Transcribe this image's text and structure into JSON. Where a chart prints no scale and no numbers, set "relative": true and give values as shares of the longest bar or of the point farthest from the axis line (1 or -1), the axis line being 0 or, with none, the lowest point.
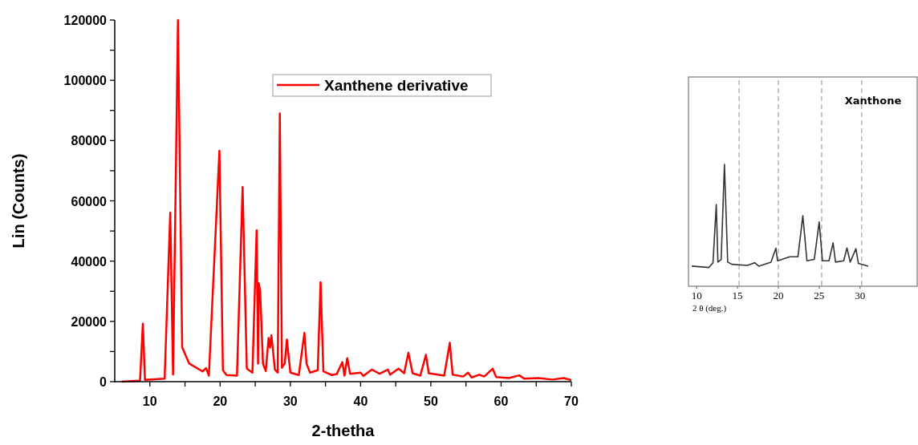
{
  "chart_data": [
    {
      "type": "line",
      "xlabel": "2-thetha",
      "ylabel": "Lin (Counts)",
      "legend": "top",
      "xlim": [
        5,
        70
      ],
      "xticks": [
        10,
        {
          "value": 15,
          "label": null
        },
        20,
        {
          "value": 25,
          "label": null
        },
        30,
        {
          "value": 35,
          "label": null
        },
        40,
        {
          "value": 45,
          "label": null
        },
        50,
        {
          "value": 55,
          "label": null
        },
        60,
        {
          "value": 65,
          "label": null
        },
        70
      ],
      "ylim": [
        0,
        120000
      ],
      "yticks": [
        0,
        {
          "value": 10000,
          "label": null
        },
        20000,
        {
          "value": 30000,
          "label": null
        },
        40000,
        {
          "value": 50000,
          "label": null
        },
        60000,
        {
          "value": 70000,
          "label": null
        },
        80000,
        {
          "value": 90000,
          "label": null
        },
        100000,
        {
          "value": 110000,
          "label": null
        },
        120000
      ],
      "series": [
        {
          "name": "Xanthene derivative",
          "color": "#ff0000",
          "x": [
            6.0,
            8.6,
            9.0,
            9.3,
            12.1,
            12.9,
            13.3,
            14.0,
            14.6,
            15.6,
            17.5,
            18.0,
            18.4,
            19.9,
            20.4,
            20.9,
            22.4,
            23.2,
            23.8,
            24.6,
            25.2,
            25.4,
            25.5,
            25.7,
            26.1,
            26.5,
            26.9,
            27.1,
            27.3,
            27.8,
            28.2,
            28.5,
            28.8,
            29.2,
            29.5,
            30.0,
            31.2,
            32.0,
            32.3,
            32.8,
            33.9,
            34.3,
            34.7,
            35.9,
            36.6,
            37.4,
            37.7,
            38.1,
            38.5,
            40.0,
            40.4,
            41.6,
            42.7,
            43.9,
            44.2,
            45.4,
            46.2,
            46.8,
            47.4,
            48.5,
            49.3,
            49.7,
            51.9,
            52.7,
            53.1,
            54.6,
            55.3,
            55.8,
            56.9,
            57.6,
            58.8,
            59.3,
            61.1,
            62.6,
            63.3,
            65.3,
            67.3,
            68.9,
            70.0
          ],
          "values": [
            0,
            300,
            19200,
            600,
            1000,
            56100,
            2400,
            120000,
            11400,
            6000,
            3400,
            4500,
            2000,
            76600,
            3800,
            2200,
            2000,
            64600,
            4300,
            3000,
            50200,
            6000,
            32700,
            30000,
            6000,
            3500,
            14500,
            11300,
            15400,
            4000,
            3000,
            89000,
            4600,
            6100,
            14000,
            3000,
            2200,
            16200,
            6000,
            3000,
            3800,
            33000,
            3400,
            2200,
            2500,
            6500,
            2000,
            7800,
            2600,
            3000,
            1900,
            4000,
            2600,
            4000,
            2300,
            4300,
            2800,
            9600,
            2800,
            2000,
            8900,
            2800,
            2000,
            12900,
            2300,
            1700,
            3000,
            1400,
            2300,
            1700,
            4300,
            1500,
            1200,
            2100,
            1000,
            1200,
            700,
            1200,
            500
          ]
        }
      ]
    },
    {
      "type": "line",
      "title": "Xanthone",
      "xlabel": "2 θ (deg.)",
      "relative": true,
      "tick_labels": "x",
      "xlim": [
        9,
        37
      ],
      "xticks": [
        10,
        15,
        20,
        25,
        30
      ],
      "ref_lines": [
        {
          "axis": "x",
          "value": 15.2,
          "color": "#aaaaaa",
          "line_style": "dashed"
        },
        {
          "axis": "x",
          "value": 20.0,
          "color": "#aaaaaa",
          "line_style": "dashed"
        },
        {
          "axis": "x",
          "value": 25.3,
          "color": "#aaaaaa",
          "line_style": "dashed"
        },
        {
          "axis": "x",
          "value": 30.2,
          "color": "#aaaaaa",
          "line_style": "dashed"
        }
      ],
      "series": [
        {
          "color": "#333333",
          "x": [
            9.4,
            11.5,
            12.0,
            12.4,
            12.6,
            13.0,
            13.4,
            13.8,
            14.3,
            16.2,
            17.1,
            17.6,
            19.1,
            19.7,
            19.9,
            21.4,
            22.4,
            23.0,
            23.5,
            24.4,
            25.0,
            25.4,
            26.2,
            26.7,
            27.0,
            28.0,
            28.4,
            28.8,
            29.5,
            29.8,
            31.0
          ],
          "values": [
            0.165,
            0.154,
            0.193,
            0.67,
            0.198,
            0.22,
            1.0,
            0.198,
            0.18,
            0.171,
            0.193,
            0.165,
            0.198,
            0.312,
            0.209,
            0.242,
            0.242,
            0.578,
            0.209,
            0.22,
            0.527,
            0.209,
            0.209,
            0.356,
            0.198,
            0.209,
            0.314,
            0.198,
            0.308,
            0.187,
            0.165
          ]
        }
      ]
    }
  ]
}
